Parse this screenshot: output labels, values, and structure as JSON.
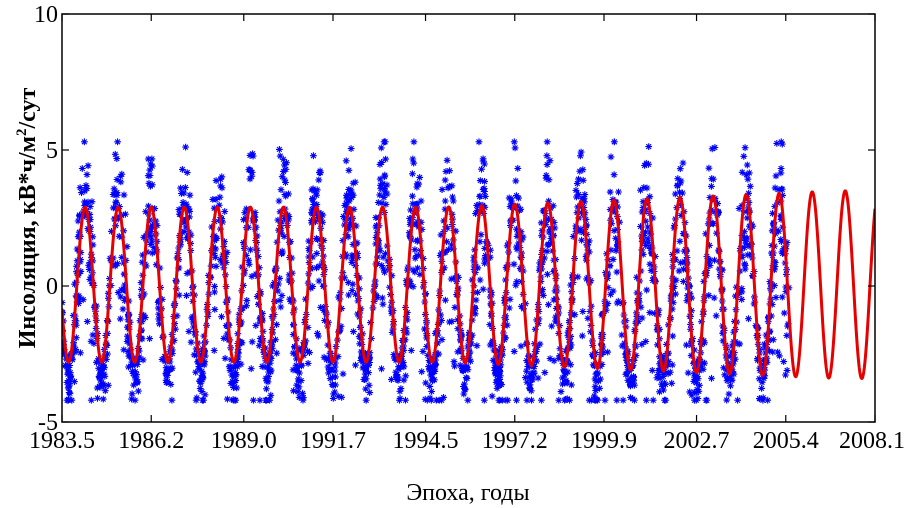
{
  "chart_data": {
    "type": "scatter",
    "title": "",
    "xlabel": "Эпоха, годы",
    "ylabel_main": "Инсоляция,  кВ*ч/м",
    "ylabel_sup": "2",
    "ylabel_tail": "/сут",
    "xlim": [
      1983.5,
      2008.1
    ],
    "ylim": [
      -5,
      10
    ],
    "x_ticks": [
      "1983.5",
      "1986.2",
      "1989.0",
      "1991.7",
      "1994.5",
      "1997.2",
      "1999.9",
      "2002.7",
      "2005.4",
      "2008.1"
    ],
    "y_ticks": [
      "-5",
      "0",
      "5",
      "10"
    ],
    "grid": false,
    "series": [
      {
        "kind": "observed",
        "marker": "asterisk",
        "color": "#0000ff",
        "x_range": [
          1983.5,
          2005.5
        ],
        "y_approx_range": [
          -4.2,
          5.3
        ]
      },
      {
        "kind": "model-fit",
        "line": "solid",
        "color": "#e60000",
        "x_range": [
          1983.5,
          2008.1
        ],
        "period_years": 1.0,
        "mean": 0.05,
        "amplitude": 2.85,
        "amplitude_end": 3.45
      }
    ]
  }
}
